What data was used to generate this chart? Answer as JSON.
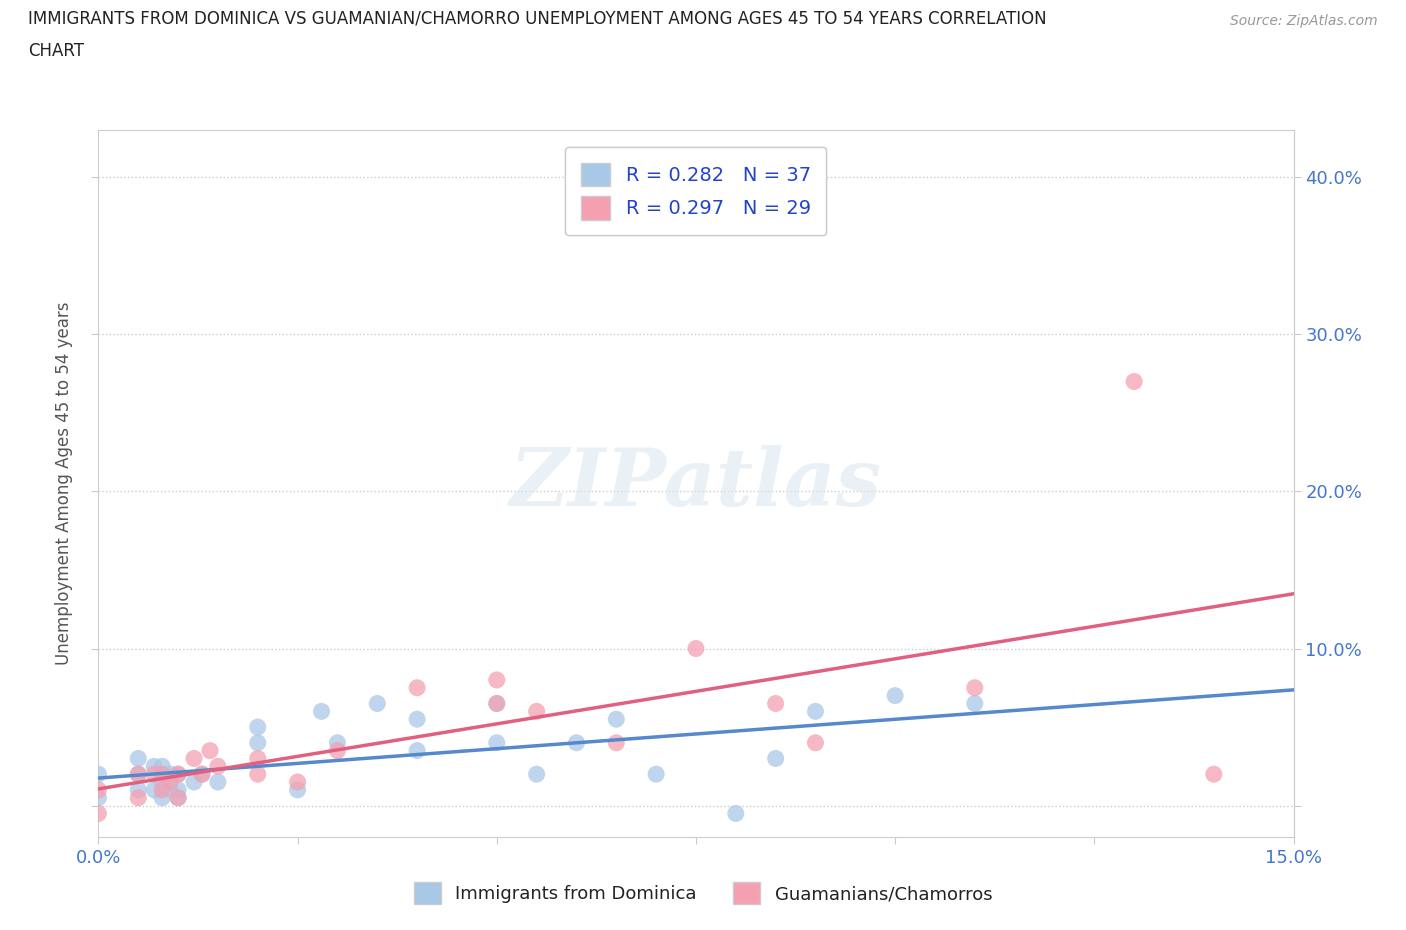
{
  "title_line1": "IMMIGRANTS FROM DOMINICA VS GUAMANIAN/CHAMORRO UNEMPLOYMENT AMONG AGES 45 TO 54 YEARS CORRELATION",
  "title_line2": "CHART",
  "source": "Source: ZipAtlas.com",
  "ylabel": "Unemployment Among Ages 45 to 54 years",
  "xlim": [
    0.0,
    0.15
  ],
  "ylim": [
    -0.02,
    0.43
  ],
  "xticks": [
    0.0,
    0.025,
    0.05,
    0.075,
    0.1,
    0.125,
    0.15
  ],
  "xticklabels": [
    "0.0%",
    "",
    "",
    "",
    "",
    "",
    "15.0%"
  ],
  "yticks": [
    0.0,
    0.1,
    0.2,
    0.3,
    0.4
  ],
  "yticklabels_right": [
    "",
    "10.0%",
    "20.0%",
    "30.0%",
    "40.0%"
  ],
  "dominica_R": 0.282,
  "dominica_N": 37,
  "guamanian_R": 0.297,
  "guamanian_N": 29,
  "dominica_color": "#a8c8e8",
  "guamanian_color": "#f4a0b0",
  "dominica_line_color": "#5588cc",
  "guamanian_line_color": "#e06080",
  "watermark_text": "ZIPatlas",
  "background_color": "#ffffff",
  "dominica_x": [
    0.0,
    0.0,
    0.005,
    0.005,
    0.005,
    0.007,
    0.007,
    0.008,
    0.008,
    0.008,
    0.009,
    0.009,
    0.01,
    0.01,
    0.01,
    0.012,
    0.013,
    0.015,
    0.02,
    0.02,
    0.025,
    0.028,
    0.03,
    0.035,
    0.04,
    0.04,
    0.05,
    0.05,
    0.055,
    0.06,
    0.065,
    0.07,
    0.08,
    0.085,
    0.09,
    0.1,
    0.11
  ],
  "dominica_y": [
    0.005,
    0.02,
    0.01,
    0.02,
    0.03,
    0.01,
    0.025,
    0.005,
    0.015,
    0.025,
    0.01,
    0.02,
    0.005,
    0.01,
    0.02,
    0.015,
    0.02,
    0.015,
    0.04,
    0.05,
    0.01,
    0.06,
    0.04,
    0.065,
    0.035,
    0.055,
    0.04,
    0.065,
    0.02,
    0.04,
    0.055,
    0.02,
    -0.005,
    0.03,
    0.06,
    0.07,
    0.065
  ],
  "guamanian_x": [
    0.0,
    0.0,
    0.005,
    0.005,
    0.007,
    0.008,
    0.008,
    0.009,
    0.01,
    0.01,
    0.012,
    0.013,
    0.014,
    0.015,
    0.02,
    0.02,
    0.025,
    0.03,
    0.04,
    0.05,
    0.05,
    0.055,
    0.065,
    0.075,
    0.085,
    0.09,
    0.11,
    0.13,
    0.14
  ],
  "guamanian_y": [
    -0.005,
    0.01,
    0.005,
    0.02,
    0.02,
    0.01,
    0.02,
    0.015,
    0.005,
    0.02,
    0.03,
    0.02,
    0.035,
    0.025,
    0.02,
    0.03,
    0.015,
    0.035,
    0.075,
    0.065,
    0.08,
    0.06,
    0.04,
    0.1,
    0.065,
    0.04,
    0.075,
    0.27,
    0.02
  ]
}
